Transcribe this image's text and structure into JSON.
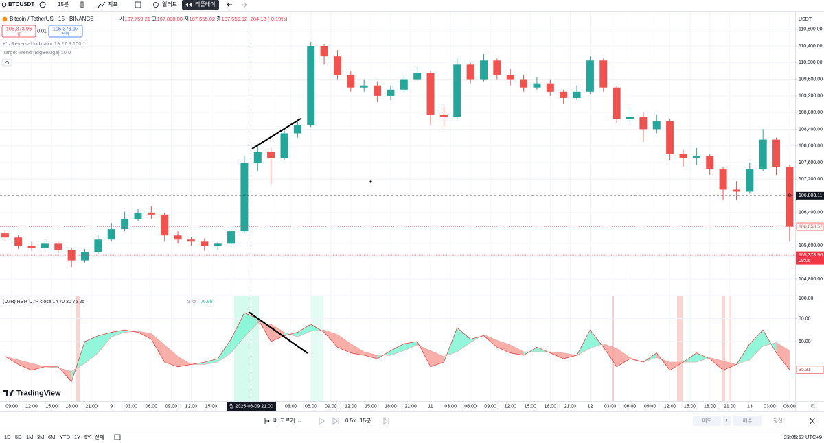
{
  "toolbar": {
    "symbol": "BTCUSDT",
    "interval": "15분",
    "indicators": "지표",
    "alert": "얼러트",
    "replay": "리플레이"
  },
  "legend": {
    "sell_price": "105,373.96",
    "sell_label": "팔",
    "spread": "0.01",
    "buy_price": "105,373.97",
    "buy_label": "바이",
    "indicators": [
      "K's Reversal Indicator 19 27 8 100 1",
      "Target Trend [BigBeluga] 10 0"
    ]
  },
  "chart_data": [
    {
      "type": "candlestick",
      "title": "Bitcoin / TetherUS · 15 · BINANCE",
      "header": [
        {
          "label": "시",
          "value": "107,759.21"
        },
        {
          "label": "고",
          "value": "107,800.00"
        },
        {
          "label": "저",
          "value": "107,555.02"
        },
        {
          "label": "종",
          "value": "107,555.02"
        }
      ],
      "change": "-204.18 (-0.19%)",
      "currency": "USDT",
      "series": [
        {
          "name": "BTCUSDT",
          "up_color": "#26a69a",
          "down_color": "#ef5350",
          "open": [
            105900,
            105800,
            105600,
            105550,
            105650,
            105500,
            105250,
            105450,
            105750,
            106000,
            106250,
            106400,
            106350,
            105850,
            105750,
            105700,
            105600,
            105650,
            105950,
            107600,
            107850,
            107700,
            108300,
            108500,
            110400,
            110150,
            109700,
            109400,
            109450,
            109200,
            109350,
            109600,
            109750,
            108750,
            108700,
            109950,
            109600,
            110050,
            109700,
            109600,
            109400,
            109500,
            109300,
            109150,
            109300,
            110050,
            109400,
            108650,
            108700,
            108400,
            108600,
            107800,
            107700,
            107750,
            107450,
            106950,
            106900,
            107450,
            108150,
            107500
          ],
          "high": [
            105980,
            105850,
            105700,
            105720,
            105700,
            105560,
            105520,
            105850,
            106150,
            106420,
            106480,
            106550,
            106400,
            105950,
            105820,
            105780,
            105700,
            106050,
            107750,
            108000,
            107950,
            108400,
            108650,
            110500,
            110450,
            110300,
            109800,
            109600,
            109550,
            109450,
            109700,
            109900,
            109800,
            108950,
            110100,
            110000,
            110200,
            110100,
            109850,
            109700,
            109650,
            109600,
            109350,
            109450,
            110150,
            110100,
            109450,
            108900,
            108800,
            108750,
            108650,
            107900,
            107950,
            107800,
            107500,
            107150,
            107600,
            108400,
            108200,
            107550
          ],
          "low": [
            105720,
            105520,
            105480,
            105500,
            105420,
            105080,
            105200,
            105400,
            105700,
            105950,
            106200,
            106250,
            105700,
            105650,
            105600,
            105480,
            105500,
            105600,
            105900,
            107400,
            107100,
            107650,
            108200,
            108450,
            109950,
            109600,
            109300,
            109300,
            109050,
            109100,
            109300,
            109550,
            108500,
            108450,
            108650,
            109500,
            109550,
            109600,
            109450,
            109300,
            109350,
            109200,
            109000,
            109100,
            109250,
            109300,
            108550,
            108550,
            108100,
            108300,
            107650,
            107500,
            107550,
            107300,
            106700,
            106700,
            106850,
            107400,
            107300,
            105700
          ],
          "close": [
            105800,
            105600,
            105550,
            105650,
            105500,
            105250,
            105450,
            105750,
            106000,
            106250,
            106400,
            106350,
            105850,
            105750,
            105700,
            105600,
            105650,
            105950,
            107600,
            107850,
            107700,
            108300,
            108500,
            110400,
            110150,
            109700,
            109400,
            109450,
            109200,
            109350,
            109600,
            109750,
            108750,
            108700,
            109950,
            109600,
            110050,
            109700,
            109600,
            109400,
            109500,
            109300,
            109150,
            109300,
            110050,
            109400,
            108650,
            108700,
            108400,
            108600,
            107800,
            107700,
            107750,
            107450,
            106950,
            106900,
            107450,
            108150,
            107500,
            106058.57
          ]
        }
      ],
      "close_label": "106,058.57",
      "price_lines": [
        {
          "value": 105373.96,
          "label": "105,373.96",
          "sublabel": "09:06",
          "color": "#f23645"
        },
        {
          "value": 106803.11,
          "label": "106,803.11",
          "color": "#131722"
        }
      ],
      "ylim": [
        104420,
        111010
      ],
      "yticks": [
        {
          "value": 104800,
          "label": "104,800.00"
        },
        {
          "value": 105600,
          "label": "105,600.00"
        },
        {
          "value": 106400,
          "label": "106,400.00"
        },
        {
          "value": 107200,
          "label": "107,200.00"
        },
        {
          "value": 107600,
          "label": "107,600.00"
        },
        {
          "value": 108000,
          "label": "108,000.00"
        },
        {
          "value": 108400,
          "label": "108,400.00"
        },
        {
          "value": 108800,
          "label": "108,800.00"
        },
        {
          "value": 109200,
          "label": "109,200.00"
        },
        {
          "value": 109600,
          "label": "109,600.00"
        },
        {
          "value": 110000,
          "label": "110,000.00"
        },
        {
          "value": 110400,
          "label": "110,400.00"
        },
        {
          "value": 110800,
          "label": "110,800.00"
        }
      ],
      "grid": true
    },
    {
      "type": "rsi",
      "title": "(D7R) RSI+ D7R close 14 70 30 75 25",
      "value_label": "76.99",
      "series": [
        {
          "name": "RSI",
          "up_color": "#7ff5d4",
          "down_color": "#f7a19a",
          "color": "#e04848",
          "values": [
            47,
            40,
            35,
            38,
            38,
            25,
            60,
            65,
            68,
            70,
            68,
            62,
            42,
            38,
            40,
            42,
            45,
            62,
            85,
            80,
            60,
            65,
            68,
            75,
            68,
            55,
            50,
            48,
            45,
            52,
            58,
            60,
            38,
            42,
            72,
            62,
            65,
            55,
            50,
            48,
            55,
            50,
            45,
            48,
            70,
            55,
            38,
            45,
            42,
            50,
            35,
            42,
            50,
            45,
            35,
            40,
            58,
            70,
            50,
            35.31
          ]
        },
        {
          "name": "MA",
          "color": "#f0a0a0",
          "values": [
            47,
            44,
            41,
            38,
            37,
            34,
            41,
            50,
            64,
            68,
            69,
            67,
            57,
            47,
            40,
            40,
            42,
            50,
            64,
            76,
            75,
            68,
            64,
            69,
            70,
            66,
            58,
            51,
            48,
            48,
            52,
            57,
            52,
            47,
            51,
            59,
            66,
            61,
            57,
            51,
            51,
            51,
            50,
            48,
            54,
            58,
            54,
            46,
            42,
            46,
            42,
            42,
            42,
            46,
            43,
            40,
            44,
            56,
            59,
            52
          ]
        }
      ],
      "ylim": [
        8,
        100
      ],
      "yticks": [
        {
          "value": 60,
          "label": "60.00"
        },
        {
          "value": 80,
          "label": "80.00"
        },
        {
          "value": 100,
          "label": "100.00"
        }
      ],
      "grid": true,
      "x_labels": [
        "09:00",
        "12:00",
        "15:00",
        "18:00",
        "21:00",
        "9",
        "03:00",
        "06:00",
        "09:00",
        "12:00",
        "15:00",
        null,
        null,
        null,
        "03:00",
        "06:00",
        "09:00",
        "12:00",
        "15:00",
        "18:00",
        "21:00",
        "11",
        "03:00",
        "06:00",
        "09:00",
        "12:00",
        "15:00",
        "18:00",
        "21:00",
        "12",
        "03:00",
        "06:00",
        "09:00",
        "12:00",
        "15:00",
        "18:00",
        "21:00",
        "13",
        "03:00",
        "06:00"
      ],
      "crosshair_label": "월 2025-06-09   21:00"
    }
  ],
  "logo": "TradingView",
  "replay_bar": {
    "select_bar": "바 고르기",
    "speed": "0.5x",
    "interval": "15분",
    "sell": "매도",
    "quantity": "1",
    "buy": "매수",
    "close": "청산"
  },
  "bottom_bar": {
    "ranges": [
      "1D",
      "5D",
      "1M",
      "3M",
      "6M",
      "YTD",
      "1Y",
      "5Y",
      "전체"
    ],
    "clock": "23:05:53 UTC+9"
  }
}
